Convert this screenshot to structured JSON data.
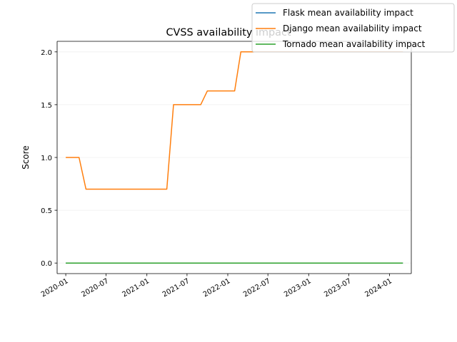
{
  "chart_data": {
    "type": "line",
    "title": "CVSS availability impact",
    "xlabel": "",
    "ylabel": "Score",
    "x_axis_type": "date",
    "xlim": [
      "2019-11-23",
      "2024-04-08"
    ],
    "ylim": [
      -0.1,
      2.1
    ],
    "x_ticks": [
      "2020-01",
      "2020-07",
      "2021-01",
      "2021-07",
      "2022-01",
      "2022-07",
      "2023-01",
      "2023-07",
      "2024-01"
    ],
    "y_ticks": [
      0.0,
      0.5,
      1.0,
      1.5,
      2.0
    ],
    "y_tick_labels": [
      "0.0",
      "0.5",
      "1.0",
      "1.5",
      "2.0"
    ],
    "grid": "horizontal",
    "legend": "top-right",
    "series": [
      {
        "name": "Flask mean availability impact",
        "color": "#1f77b4",
        "points": [
          [
            "2020-01-01",
            0.0
          ],
          [
            "2024-03-01",
            0.0
          ]
        ]
      },
      {
        "name": "Django mean availability impact",
        "color": "#ff7f0e",
        "points": [
          [
            "2020-01-01",
            1.0
          ],
          [
            "2020-02-01",
            1.0
          ],
          [
            "2020-03-01",
            1.0
          ],
          [
            "2020-04-01",
            0.7
          ],
          [
            "2020-05-01",
            0.7
          ],
          [
            "2020-06-01",
            0.7
          ],
          [
            "2020-07-01",
            0.7
          ],
          [
            "2020-08-01",
            0.7
          ],
          [
            "2020-09-01",
            0.7
          ],
          [
            "2020-10-01",
            0.7
          ],
          [
            "2020-11-01",
            0.7
          ],
          [
            "2020-12-01",
            0.7
          ],
          [
            "2021-01-01",
            0.7
          ],
          [
            "2021-02-01",
            0.7
          ],
          [
            "2021-03-01",
            0.7
          ],
          [
            "2021-04-01",
            0.7
          ],
          [
            "2021-05-01",
            1.5
          ],
          [
            "2021-06-01",
            1.5
          ],
          [
            "2021-07-01",
            1.5
          ],
          [
            "2021-08-01",
            1.5
          ],
          [
            "2021-09-01",
            1.5
          ],
          [
            "2021-10-01",
            1.63
          ],
          [
            "2021-11-01",
            1.63
          ],
          [
            "2021-12-01",
            1.63
          ],
          [
            "2022-01-01",
            1.63
          ],
          [
            "2022-02-01",
            1.63
          ],
          [
            "2022-03-01",
            2.0
          ],
          [
            "2022-06-01",
            2.0
          ],
          [
            "2023-01-01",
            2.0
          ],
          [
            "2023-07-01",
            2.0
          ],
          [
            "2024-01-01",
            2.0
          ],
          [
            "2024-03-01",
            2.0
          ]
        ]
      },
      {
        "name": "Tornado mean availability impact",
        "color": "#2ca02c",
        "points": [
          [
            "2020-01-01",
            0.0
          ],
          [
            "2024-03-01",
            0.0
          ]
        ]
      }
    ]
  }
}
